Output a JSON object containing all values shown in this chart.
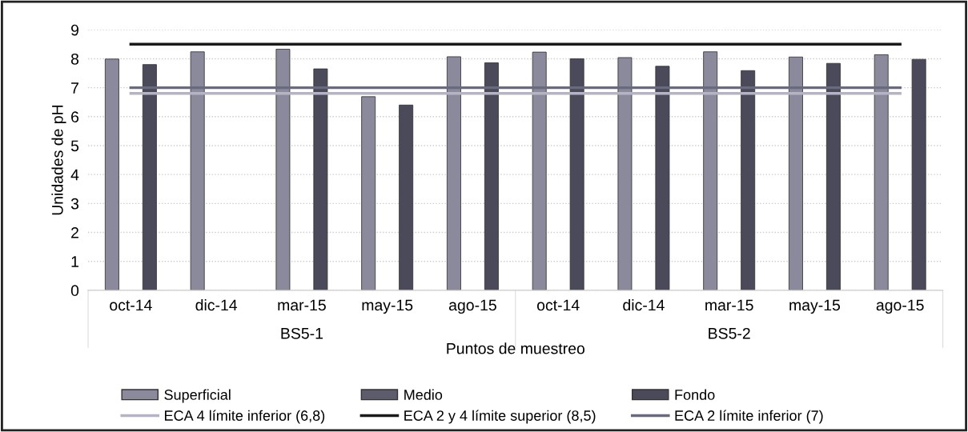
{
  "chart_data": {
    "type": "bar",
    "xlabel": "Puntos de muestreo",
    "ylabel": "Unidades de pH",
    "categories": [
      "oct-14",
      "dic-14",
      "mar-15",
      "may-15",
      "ago-15",
      "oct-14",
      "dic-14",
      "mar-15",
      "may-15",
      "ago-15"
    ],
    "series": [
      {
        "name": "Superficial",
        "color": "#8a8a9c",
        "values": [
          7.99,
          8.24,
          8.33,
          6.69,
          8.07,
          8.23,
          8.04,
          8.24,
          8.06,
          8.14
        ]
      },
      {
        "name": "Medio",
        "color": "#5c5c6c",
        "values": [
          null,
          null,
          null,
          null,
          null,
          null,
          null,
          null,
          null,
          null
        ]
      },
      {
        "name": "Fondo",
        "color": "#4a4a5a",
        "values": [
          7.8,
          null,
          7.65,
          6.4,
          7.86,
          8.0,
          7.74,
          7.59,
          7.84,
          7.98
        ]
      },
      {
        "name": "ECA 4 límite inferior (6,8)",
        "type": "line",
        "color": "#b4b4c4",
        "values": [
          6.8,
          6.8,
          6.8,
          6.8,
          6.8,
          6.8,
          6.8,
          6.8,
          6.8,
          6.8
        ]
      },
      {
        "name": "ECA 2 y 4 límite superior (8,5)",
        "type": "line",
        "color": "#1a1a1a",
        "values": [
          8.5,
          8.5,
          8.5,
          8.5,
          8.5,
          8.5,
          8.5,
          8.5,
          8.5,
          8.5
        ]
      },
      {
        "name": "ECA 2 límite inferior (7)",
        "type": "line",
        "color": "#6a6a7e",
        "values": [
          7,
          7,
          7,
          7,
          7,
          7,
          7,
          7,
          7,
          7
        ]
      }
    ],
    "annotations": [
      "BS5-1",
      "BS5-2"
    ],
    "ylim": [
      0,
      9
    ],
    "yticks": [
      0,
      1,
      2,
      3,
      4,
      5,
      6,
      7,
      8,
      9
    ],
    "grid": "y",
    "legend": "bottom"
  }
}
